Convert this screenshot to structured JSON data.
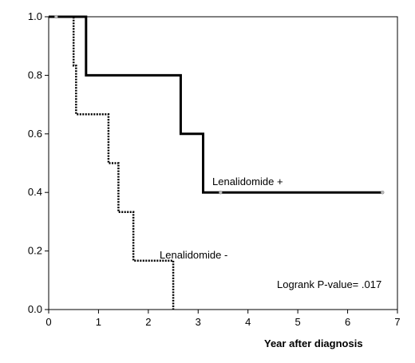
{
  "chart_data": {
    "type": "line",
    "subtype": "kaplan-meier-step",
    "xlabel": "Year after diagnosis",
    "ylabel": "",
    "xlim": [
      0,
      7
    ],
    "ylim": [
      0,
      1.0
    ],
    "x_ticks": [
      "0",
      "1",
      "2",
      "3",
      "4",
      "5",
      "6",
      "7"
    ],
    "y_ticks": [
      "0.0",
      "0.2",
      "0.4",
      "0.6",
      "0.8",
      "1.0"
    ],
    "grid": false,
    "legend": "none (series labelled inline)",
    "annotation": "Logrank P-value= .017",
    "series": [
      {
        "name": "Lenalidomide +",
        "line_style": "solid",
        "color": "#000000",
        "steps": [
          {
            "x": 0.0,
            "y": 1.0
          },
          {
            "x": 0.75,
            "y": 0.8
          },
          {
            "x": 2.65,
            "y": 0.6
          },
          {
            "x": 3.1,
            "y": 0.4
          }
        ],
        "end_x": 6.7,
        "censor_marks": [
          {
            "x": 0.15,
            "y": 1.0
          },
          {
            "x": 3.45,
            "y": 0.4
          },
          {
            "x": 6.7,
            "y": 0.4
          }
        ]
      },
      {
        "name": "Lenalidomide -",
        "line_style": "dotted",
        "color": "#000000",
        "steps": [
          {
            "x": 0.0,
            "y": 1.0
          },
          {
            "x": 0.5,
            "y": 0.833
          },
          {
            "x": 0.55,
            "y": 0.667
          },
          {
            "x": 1.2,
            "y": 0.5
          },
          {
            "x": 1.4,
            "y": 0.333
          },
          {
            "x": 1.7,
            "y": 0.167
          },
          {
            "x": 2.5,
            "y": 0.0
          }
        ],
        "end_x": 2.5,
        "censor_marks": []
      }
    ]
  }
}
